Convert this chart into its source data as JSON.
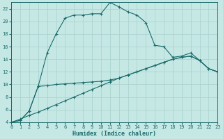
{
  "xlabel": "Humidex (Indice chaleur)",
  "xlim": [
    0,
    23
  ],
  "ylim": [
    4,
    23
  ],
  "xticks": [
    0,
    1,
    2,
    3,
    4,
    5,
    6,
    7,
    8,
    9,
    10,
    11,
    12,
    13,
    14,
    15,
    16,
    17,
    18,
    19,
    20,
    21,
    22,
    23
  ],
  "yticks": [
    4,
    6,
    8,
    10,
    12,
    14,
    16,
    18,
    20,
    22
  ],
  "bg_color": "#c5e8e5",
  "line_color": "#1a6b6b",
  "grid_color": "#a8d0cc",
  "line1_x": [
    0,
    1,
    2,
    3,
    4,
    5,
    6,
    7,
    8,
    9,
    10,
    11,
    12,
    13,
    14,
    15,
    16,
    17,
    18,
    19,
    20,
    21,
    22,
    23
  ],
  "line1_y": [
    4.0,
    4.3,
    5.8,
    9.7,
    15.0,
    18.0,
    20.5,
    21.0,
    21.0,
    21.2,
    21.2,
    23.0,
    22.3,
    21.5,
    21.0,
    19.8,
    16.2,
    16.0,
    14.3,
    14.5,
    15.0,
    13.8,
    12.5,
    12.0
  ],
  "line2_x": [
    0,
    1,
    2,
    3,
    4,
    5,
    6,
    7,
    8,
    9,
    10,
    11,
    12,
    13,
    14,
    15,
    16,
    17,
    18,
    19,
    20,
    21,
    22,
    23
  ],
  "line2_y": [
    4.0,
    4.3,
    5.8,
    9.7,
    9.8,
    10.0,
    10.1,
    10.2,
    10.3,
    10.4,
    10.5,
    10.7,
    11.0,
    11.5,
    12.0,
    12.5,
    13.0,
    13.5,
    14.0,
    14.3,
    14.5,
    13.8,
    12.5,
    12.0
  ],
  "line3_x": [
    0,
    1,
    2,
    3,
    4,
    5,
    6,
    7,
    8,
    9,
    10,
    11,
    12,
    13,
    14,
    15,
    16,
    17,
    18,
    19,
    20,
    21,
    22,
    23
  ],
  "line3_y": [
    4.0,
    4.5,
    5.1,
    5.6,
    6.2,
    6.8,
    7.4,
    8.0,
    8.6,
    9.2,
    9.8,
    10.4,
    11.0,
    11.5,
    12.0,
    12.5,
    13.0,
    13.5,
    14.0,
    14.3,
    14.5,
    13.8,
    12.5,
    12.0
  ],
  "tick_fontsize": 5,
  "xlabel_fontsize": 6
}
